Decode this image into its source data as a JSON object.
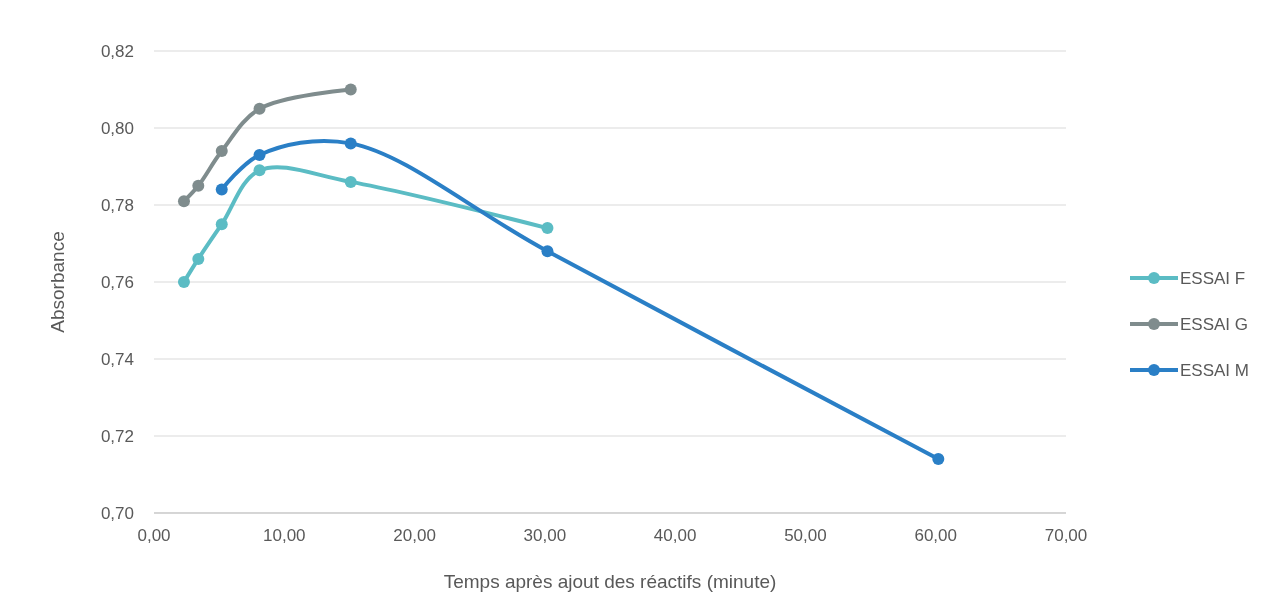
{
  "chart_data": {
    "type": "line",
    "xlabel": "Temps après ajout des réactifs (minute)",
    "ylabel": "Absorbance",
    "xlim": [
      0,
      70
    ],
    "ylim": [
      0.7,
      0.82
    ],
    "xticks": [
      {
        "value": 0,
        "label": "0,00"
      },
      {
        "value": 10,
        "label": "10,00"
      },
      {
        "value": 20,
        "label": "20,00"
      },
      {
        "value": 30,
        "label": "30,00"
      },
      {
        "value": 40,
        "label": "40,00"
      },
      {
        "value": 50,
        "label": "50,00"
      },
      {
        "value": 60,
        "label": "60,00"
      },
      {
        "value": 70,
        "label": "70,00"
      }
    ],
    "yticks": [
      {
        "value": 0.7,
        "label": "0,70"
      },
      {
        "value": 0.72,
        "label": "0,72"
      },
      {
        "value": 0.74,
        "label": "0,74"
      },
      {
        "value": 0.76,
        "label": "0,76"
      },
      {
        "value": 0.78,
        "label": "0,78"
      },
      {
        "value": 0.8,
        "label": "0,80"
      },
      {
        "value": 0.82,
        "label": "0,82"
      }
    ],
    "grid": "y",
    "legend": "right",
    "marker": "circle",
    "line_style": "solid",
    "series": [
      {
        "name": "ESSAI F",
        "color": "#5bbcc4",
        "x": [
          2.3,
          3.4,
          5.2,
          8.1,
          15.1,
          30.2
        ],
        "values": [
          0.76,
          0.766,
          0.775,
          0.789,
          0.786,
          0.774
        ]
      },
      {
        "name": "ESSAI G",
        "color": "#7f8c8d",
        "x": [
          2.3,
          3.4,
          5.2,
          8.1,
          15.1
        ],
        "values": [
          0.781,
          0.785,
          0.794,
          0.805,
          0.81
        ]
      },
      {
        "name": "ESSAI M",
        "color": "#2a7fc6",
        "x": [
          5.2,
          8.1,
          15.1,
          30.2,
          60.2
        ],
        "values": [
          0.784,
          0.793,
          0.796,
          0.768,
          0.714
        ]
      }
    ]
  }
}
